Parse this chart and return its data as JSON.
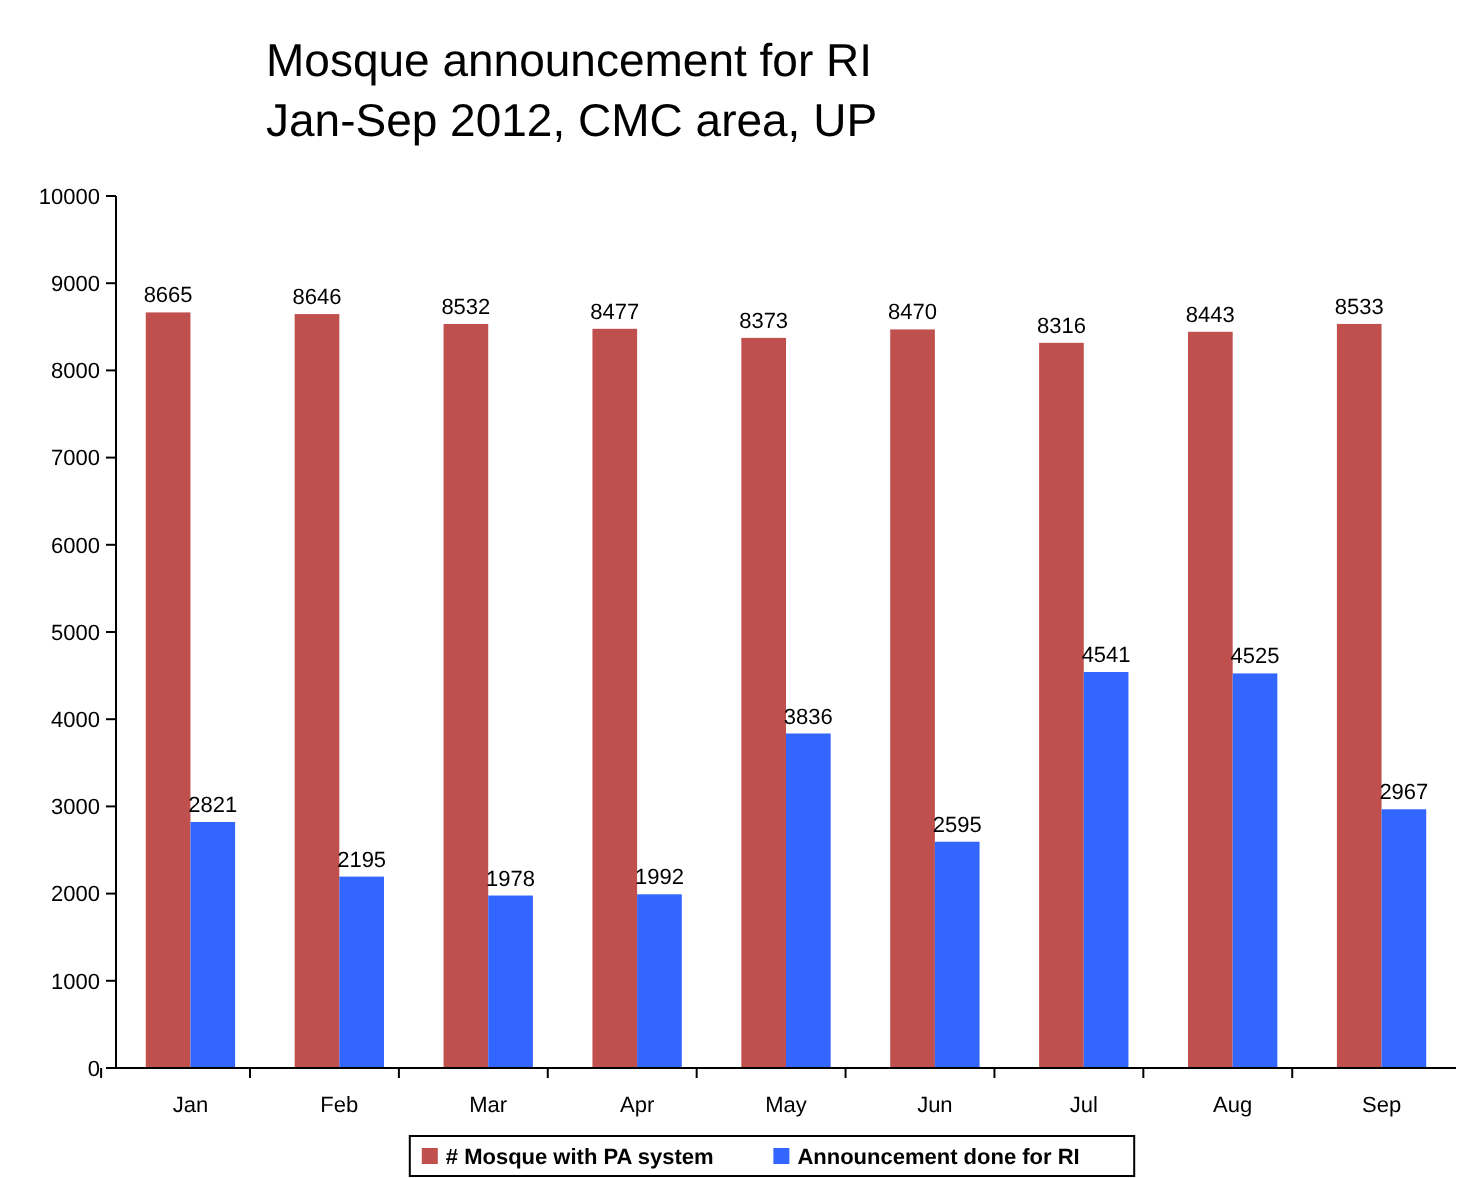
{
  "chart_data": {
    "type": "bar",
    "title": "Mosque announcement for RI\nJan-Sep 2012, CMC area, UP",
    "categories": [
      "Jan",
      "Feb",
      "Mar",
      "Apr",
      "May",
      "Jun",
      "Jul",
      "Aug",
      "Sep"
    ],
    "series": [
      {
        "name": "# Mosque with PA system",
        "color": "#c0504d",
        "values": [
          8665,
          8646,
          8532,
          8477,
          8373,
          8470,
          8316,
          8443,
          8533
        ]
      },
      {
        "name": "Announcement done for RI",
        "color": "#3366ff",
        "values": [
          2821,
          2195,
          1978,
          1992,
          3836,
          2595,
          4541,
          4525,
          2967
        ]
      }
    ],
    "ylim": [
      0,
      10000
    ],
    "yticks": [
      0,
      1000,
      2000,
      3000,
      4000,
      5000,
      6000,
      7000,
      8000,
      9000,
      10000
    ],
    "grid": false,
    "legend": "bottom",
    "data_labels": true
  }
}
